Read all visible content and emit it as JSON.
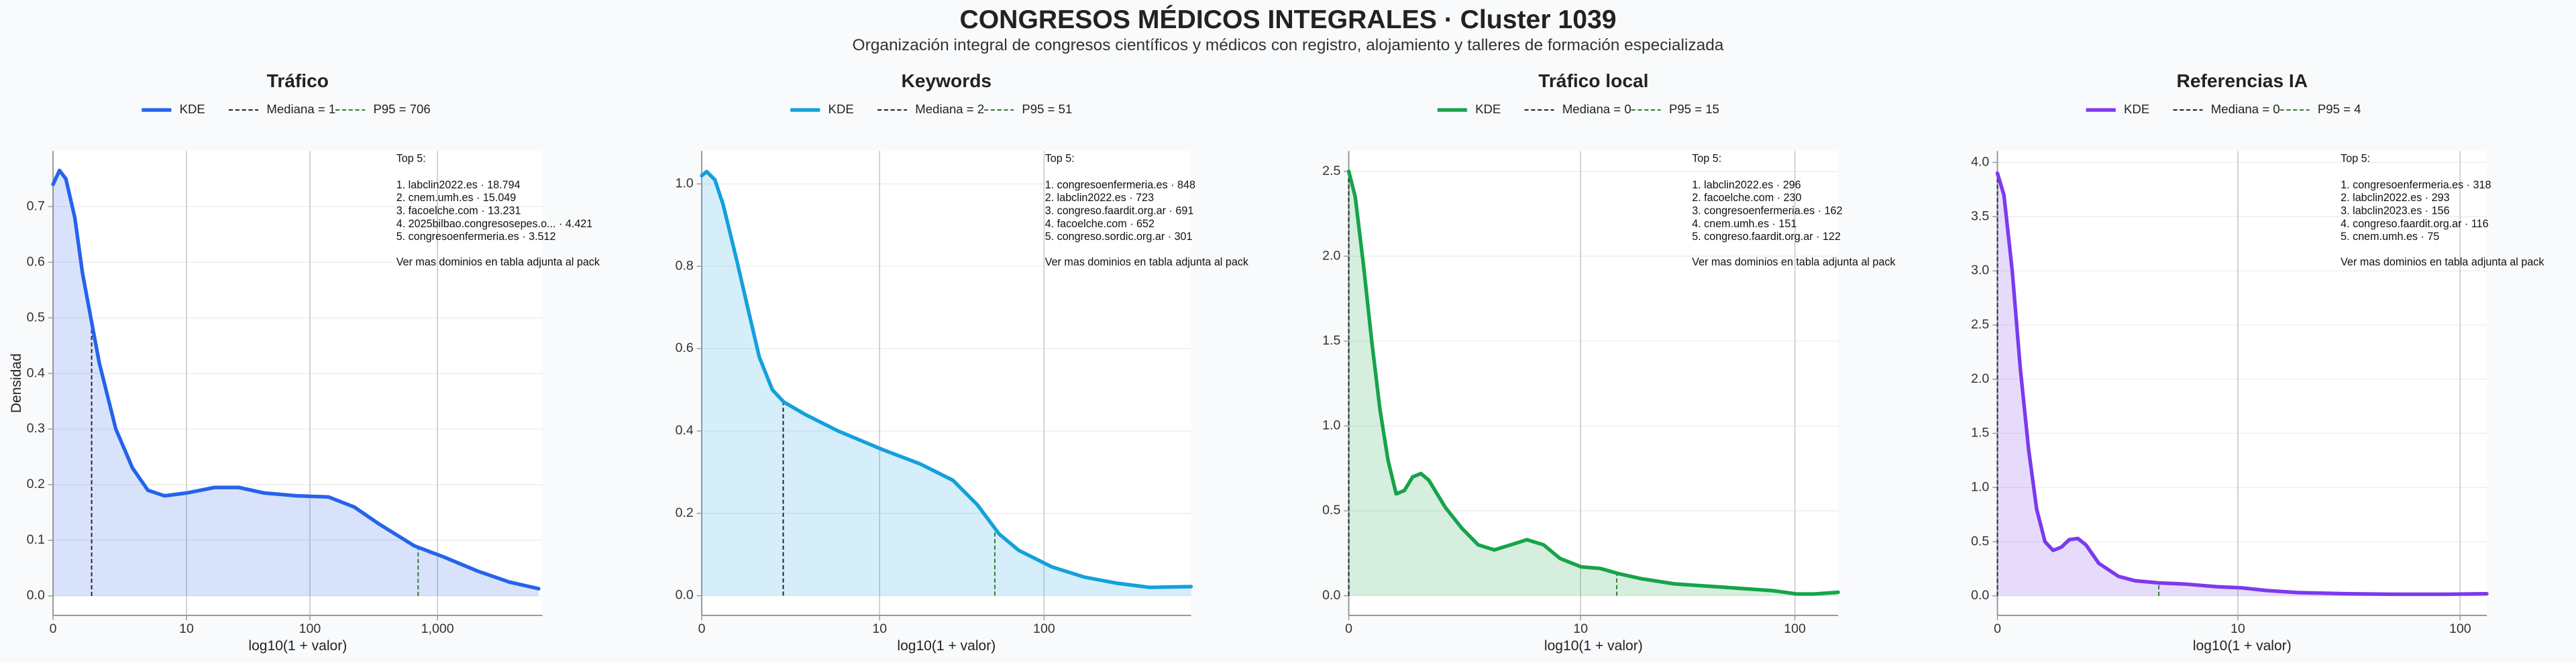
{
  "title": "CONGRESOS MÉDICOS INTEGRALES · Cluster 1039",
  "subtitle": "Organización integral de congresos científicos y médicos con registro, alojamiento y talleres de formación especializada",
  "chart_data": [
    {
      "type": "line",
      "title": "Tráfico",
      "xlabel": "log10(1 + valor)",
      "ylabel": "Densidad",
      "xscale": "log1p",
      "fill": true,
      "grid": true,
      "xlim": [
        0,
        6600
      ],
      "xticks": [
        0,
        10,
        100,
        {
          "value": 1000,
          "label": "1,000"
        }
      ],
      "ylim": [
        -0.035,
        0.8
      ],
      "yticks": [
        {
          "value": 0,
          "label": "0.0"
        },
        0.1,
        0.2,
        0.3,
        0.4,
        0.5,
        0.6,
        0.7
      ],
      "x": [
        0,
        0.122,
        0.259,
        0.479,
        0.698,
        0.972,
        1.29,
        2.09,
        3.17,
        4.5,
        6.41,
        9.96,
        17.2,
        27.2,
        43.7,
        78.4,
        140,
        223,
        346,
        660,
        1121,
        2041,
        3630,
        6165
      ],
      "series": [
        {
          "name": "KDE",
          "color": "#2563eb",
          "values": [
            0.74,
            0.765,
            0.75,
            0.68,
            0.58,
            0.5,
            0.42,
            0.3,
            0.23,
            0.19,
            0.18,
            0.185,
            0.195,
            0.195,
            0.185,
            0.18,
            0.178,
            0.16,
            0.13,
            0.09,
            0.07,
            0.045,
            0.025,
            0.013
          ]
        }
      ],
      "reference_lines": [
        {
          "name": "Mediana = 1",
          "value": 1,
          "color": "#222222"
        },
        {
          "name": "P95 = 706",
          "value": 706,
          "color": "#2e7d32"
        }
      ],
      "annotation": {
        "title": "Top 5:",
        "items": [
          "1. labclin2022.es · 18.794",
          "2. cnem.umh.es · 15.049",
          "3. facoelche.com · 13.231",
          "4. 2025bilbao.congresosepes.o... · 4.421",
          "5. congresoenfermeria.es · 3.512"
        ],
        "footer": "Ver mas dominios en tabla adjunta al pack"
      }
    },
    {
      "type": "line",
      "title": "Keywords",
      "xlabel": "log10(1 + valor)",
      "xscale": "log1p",
      "fill": true,
      "grid": true,
      "xlim": [
        0,
        732
      ],
      "xticks": [
        0,
        10,
        100
      ],
      "ylim": [
        -0.048,
        1.08
      ],
      "yticks": [
        {
          "value": 0,
          "label": "0.0"
        },
        0.2,
        0.4,
        0.6,
        0.8,
        {
          "value": 1,
          "label": "1.0"
        }
      ],
      "x": [
        0,
        0.069,
        0.194,
        0.334,
        0.592,
        0.858,
        1.17,
        1.59,
        2.03,
        3.04,
        5.28,
        10.4,
        18.0,
        28.6,
        40.2,
        54,
        70.8,
        111,
        173,
        270,
        421,
        732
      ],
      "series": [
        {
          "name": "KDE",
          "color": "#14a0dc",
          "values": [
            1.02,
            1.03,
            1.01,
            0.95,
            0.82,
            0.7,
            0.58,
            0.5,
            0.47,
            0.44,
            0.4,
            0.355,
            0.32,
            0.28,
            0.22,
            0.15,
            0.11,
            0.07,
            0.045,
            0.03,
            0.02,
            0.022
          ]
        }
      ],
      "reference_lines": [
        {
          "name": "Mediana = 2",
          "value": 2,
          "color": "#222222"
        },
        {
          "name": "P95 = 51",
          "value": 51,
          "color": "#2e7d32"
        }
      ],
      "annotation": {
        "title": "Top 5:",
        "items": [
          "1. congresoenfermeria.es · 848",
          "2. labclin2022.es · 723",
          "3. congreso.faardit.org.ar · 691",
          "4. facoelche.com · 652",
          "5. congreso.sordic.org.ar · 301"
        ],
        "footer": "Ver mas dominios en tabla adjunta al pack"
      }
    },
    {
      "type": "line",
      "title": "Tráfico local",
      "xlabel": "log10(1 + valor)",
      "xscale": "log1p",
      "fill": true,
      "grid": true,
      "xlim": [
        0,
        157
      ],
      "xticks": [
        0,
        10,
        100
      ],
      "ylim": [
        -0.116,
        2.62
      ],
      "yticks": [
        {
          "value": 0,
          "label": "0.0"
        },
        0.5,
        {
          "value": 1,
          "label": "1.0"
        },
        1.5,
        {
          "value": 2,
          "label": "2.0"
        },
        2.5
      ],
      "x": [
        0,
        0.069,
        0.164,
        0.268,
        0.38,
        0.5,
        0.633,
        0.778,
        0.936,
        1.109,
        1.291,
        1.716,
        2.21,
        2.81,
        3.51,
        4.35,
        5.32,
        6.5,
        7.89,
        10.07,
        12.55,
        15.3,
        19.7,
        28.0,
        47.3,
        79.2,
        102.5,
        121.5,
        157
      ],
      "series": [
        {
          "name": "KDE",
          "color": "#16a34a",
          "values": [
            2.5,
            2.35,
            1.95,
            1.5,
            1.1,
            0.8,
            0.6,
            0.62,
            0.7,
            0.72,
            0.68,
            0.52,
            0.4,
            0.3,
            0.27,
            0.3,
            0.33,
            0.3,
            0.22,
            0.17,
            0.16,
            0.13,
            0.1,
            0.07,
            0.05,
            0.03,
            0.01,
            0.01,
            0.02
          ]
        }
      ],
      "reference_lines": [
        {
          "name": "Mediana = 0",
          "value": 0,
          "color": "#222222"
        },
        {
          "name": "P95 = 15",
          "value": 15,
          "color": "#2e7d32"
        }
      ],
      "annotation": {
        "title": "Top 5:",
        "items": [
          "1. labclin2022.es · 296",
          "2. facoelche.com · 230",
          "3. congresoenfermeria.es · 162",
          "4. cnem.umh.es · 151",
          "5. congreso.faardit.org.ar · 122"
        ],
        "footer": "Ver mas dominios en tabla adjunta al pack"
      }
    },
    {
      "type": "line",
      "title": "Referencias IA",
      "xlabel": "log10(1 + valor)",
      "xscale": "log1p",
      "fill": true,
      "grid": true,
      "xlim": [
        0,
        130.8
      ],
      "xticks": [
        0,
        10,
        100
      ],
      "ylim": [
        -0.18,
        4.106
      ],
      "yticks": [
        {
          "value": 0,
          "label": "0.0"
        },
        0.5,
        {
          "value": 1,
          "label": "1.0"
        },
        1.5,
        {
          "value": 2,
          "label": "2.0"
        },
        2.5,
        {
          "value": 3,
          "label": "3.0"
        },
        3.5,
        {
          "value": 4,
          "label": "4.0"
        }
      ],
      "x": [
        0,
        0.067,
        0.159,
        0.256,
        0.365,
        0.479,
        0.607,
        0.742,
        0.892,
        1.05,
        1.23,
        1.42,
        1.75,
        2.35,
        2.94,
        4.04,
        5.44,
        7.91,
        10.4,
        13.6,
        19.2,
        32.0,
        52.7,
        86.7,
        130.8
      ],
      "series": [
        {
          "name": "KDE",
          "color": "#7c3aed",
          "values": [
            3.9,
            3.7,
            3.0,
            2.1,
            1.35,
            0.8,
            0.5,
            0.42,
            0.45,
            0.52,
            0.53,
            0.47,
            0.3,
            0.18,
            0.14,
            0.12,
            0.11,
            0.085,
            0.075,
            0.05,
            0.03,
            0.02,
            0.015,
            0.015,
            0.02
          ]
        }
      ],
      "reference_lines": [
        {
          "name": "Mediana = 0",
          "value": 0,
          "color": "#222222"
        },
        {
          "name": "P95 = 4",
          "value": 4,
          "color": "#2e7d32"
        }
      ],
      "annotation": {
        "title": "Top 5:",
        "items": [
          "1. congresoenfermeria.es · 318",
          "2. labclin2022.es · 293",
          "3. labclin2023.es · 156",
          "4. congreso.faardit.org.ar · 116",
          "5. cnem.umh.es · 75"
        ],
        "footer": "Ver mas dominios en tabla adjunta al pack"
      }
    }
  ]
}
